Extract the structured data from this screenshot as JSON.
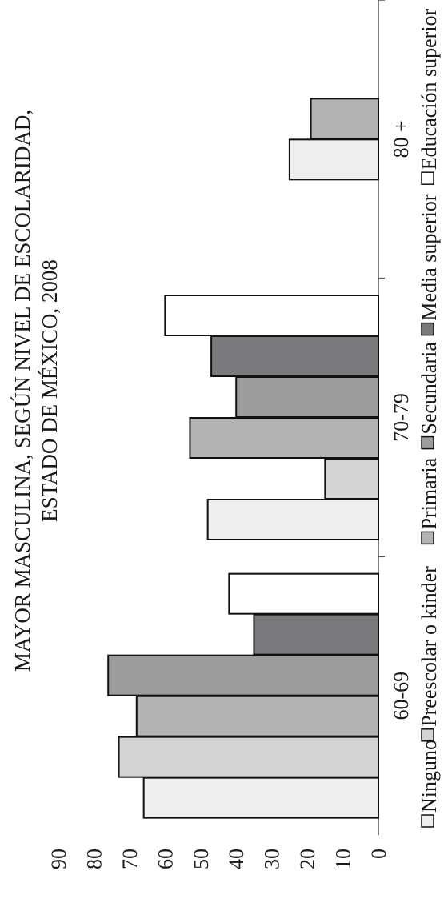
{
  "chart_data": {
    "type": "bar",
    "orientation": "rotated 90° counter-clockwise",
    "title_lines": [
      "MAYOR MASCULINA, SEGÚN NIVEL DE ESCOLARIDAD,",
      "ESTADO DE MÉXICO, 2008"
    ],
    "categories": [
      "60-69",
      "70-79",
      "80 +"
    ],
    "ylim": [
      0,
      90
    ],
    "yticks": [
      "0",
      "10",
      "20",
      "30",
      "40",
      "50",
      "60",
      "70",
      "80",
      "90"
    ],
    "series": [
      {
        "name": "Ninguno",
        "values": [
          66,
          48,
          25
        ],
        "color": "#efefef"
      },
      {
        "name": "Preescolar o kinder",
        "values": [
          73,
          15,
          null
        ],
        "color": "#d4d4d4"
      },
      {
        "name": "Primaria",
        "values": [
          68,
          53,
          19
        ],
        "color": "#b3b3b3"
      },
      {
        "name": "Secundaria",
        "values": [
          76,
          40,
          null
        ],
        "color": "#9c9c9c"
      },
      {
        "name": "Media superior",
        "values": [
          35,
          47,
          null
        ],
        "color": "#7a7a7c"
      },
      {
        "name": "Educación superior",
        "values": [
          42,
          60,
          null
        ],
        "color": "#ffffff"
      }
    ],
    "legend_position": "bottom"
  }
}
